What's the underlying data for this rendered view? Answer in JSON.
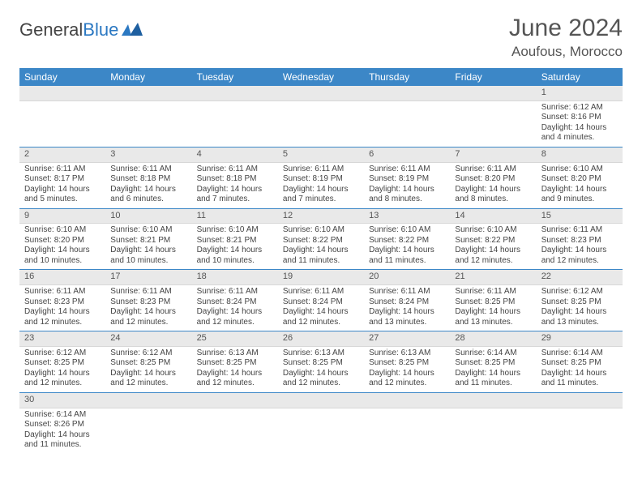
{
  "logo": {
    "text_general": "General",
    "text_blue": "Blue"
  },
  "title": "June 2024",
  "location": "Aoufous, Morocco",
  "colors": {
    "header_bg": "#3c87c7",
    "header_text": "#ffffff",
    "daynum_bg": "#e9e9e9",
    "row_border": "#3c87c7",
    "body_text": "#444444",
    "title_text": "#555555"
  },
  "weekdays": [
    "Sunday",
    "Monday",
    "Tuesday",
    "Wednesday",
    "Thursday",
    "Friday",
    "Saturday"
  ],
  "weeks": [
    [
      null,
      null,
      null,
      null,
      null,
      null,
      {
        "n": "1",
        "sunrise": "6:12 AM",
        "sunset": "8:16 PM",
        "daylight": "14 hours and 4 minutes."
      }
    ],
    [
      {
        "n": "2",
        "sunrise": "6:11 AM",
        "sunset": "8:17 PM",
        "daylight": "14 hours and 5 minutes."
      },
      {
        "n": "3",
        "sunrise": "6:11 AM",
        "sunset": "8:18 PM",
        "daylight": "14 hours and 6 minutes."
      },
      {
        "n": "4",
        "sunrise": "6:11 AM",
        "sunset": "8:18 PM",
        "daylight": "14 hours and 7 minutes."
      },
      {
        "n": "5",
        "sunrise": "6:11 AM",
        "sunset": "8:19 PM",
        "daylight": "14 hours and 7 minutes."
      },
      {
        "n": "6",
        "sunrise": "6:11 AM",
        "sunset": "8:19 PM",
        "daylight": "14 hours and 8 minutes."
      },
      {
        "n": "7",
        "sunrise": "6:11 AM",
        "sunset": "8:20 PM",
        "daylight": "14 hours and 8 minutes."
      },
      {
        "n": "8",
        "sunrise": "6:10 AM",
        "sunset": "8:20 PM",
        "daylight": "14 hours and 9 minutes."
      }
    ],
    [
      {
        "n": "9",
        "sunrise": "6:10 AM",
        "sunset": "8:20 PM",
        "daylight": "14 hours and 10 minutes."
      },
      {
        "n": "10",
        "sunrise": "6:10 AM",
        "sunset": "8:21 PM",
        "daylight": "14 hours and 10 minutes."
      },
      {
        "n": "11",
        "sunrise": "6:10 AM",
        "sunset": "8:21 PM",
        "daylight": "14 hours and 10 minutes."
      },
      {
        "n": "12",
        "sunrise": "6:10 AM",
        "sunset": "8:22 PM",
        "daylight": "14 hours and 11 minutes."
      },
      {
        "n": "13",
        "sunrise": "6:10 AM",
        "sunset": "8:22 PM",
        "daylight": "14 hours and 11 minutes."
      },
      {
        "n": "14",
        "sunrise": "6:10 AM",
        "sunset": "8:22 PM",
        "daylight": "14 hours and 12 minutes."
      },
      {
        "n": "15",
        "sunrise": "6:11 AM",
        "sunset": "8:23 PM",
        "daylight": "14 hours and 12 minutes."
      }
    ],
    [
      {
        "n": "16",
        "sunrise": "6:11 AM",
        "sunset": "8:23 PM",
        "daylight": "14 hours and 12 minutes."
      },
      {
        "n": "17",
        "sunrise": "6:11 AM",
        "sunset": "8:23 PM",
        "daylight": "14 hours and 12 minutes."
      },
      {
        "n": "18",
        "sunrise": "6:11 AM",
        "sunset": "8:24 PM",
        "daylight": "14 hours and 12 minutes."
      },
      {
        "n": "19",
        "sunrise": "6:11 AM",
        "sunset": "8:24 PM",
        "daylight": "14 hours and 12 minutes."
      },
      {
        "n": "20",
        "sunrise": "6:11 AM",
        "sunset": "8:24 PM",
        "daylight": "14 hours and 13 minutes."
      },
      {
        "n": "21",
        "sunrise": "6:11 AM",
        "sunset": "8:25 PM",
        "daylight": "14 hours and 13 minutes."
      },
      {
        "n": "22",
        "sunrise": "6:12 AM",
        "sunset": "8:25 PM",
        "daylight": "14 hours and 13 minutes."
      }
    ],
    [
      {
        "n": "23",
        "sunrise": "6:12 AM",
        "sunset": "8:25 PM",
        "daylight": "14 hours and 12 minutes."
      },
      {
        "n": "24",
        "sunrise": "6:12 AM",
        "sunset": "8:25 PM",
        "daylight": "14 hours and 12 minutes."
      },
      {
        "n": "25",
        "sunrise": "6:13 AM",
        "sunset": "8:25 PM",
        "daylight": "14 hours and 12 minutes."
      },
      {
        "n": "26",
        "sunrise": "6:13 AM",
        "sunset": "8:25 PM",
        "daylight": "14 hours and 12 minutes."
      },
      {
        "n": "27",
        "sunrise": "6:13 AM",
        "sunset": "8:25 PM",
        "daylight": "14 hours and 12 minutes."
      },
      {
        "n": "28",
        "sunrise": "6:14 AM",
        "sunset": "8:25 PM",
        "daylight": "14 hours and 11 minutes."
      },
      {
        "n": "29",
        "sunrise": "6:14 AM",
        "sunset": "8:25 PM",
        "daylight": "14 hours and 11 minutes."
      }
    ],
    [
      {
        "n": "30",
        "sunrise": "6:14 AM",
        "sunset": "8:26 PM",
        "daylight": "14 hours and 11 minutes."
      },
      null,
      null,
      null,
      null,
      null,
      null
    ]
  ],
  "labels": {
    "sunrise_prefix": "Sunrise: ",
    "sunset_prefix": "Sunset: ",
    "daylight_prefix": "Daylight: "
  }
}
